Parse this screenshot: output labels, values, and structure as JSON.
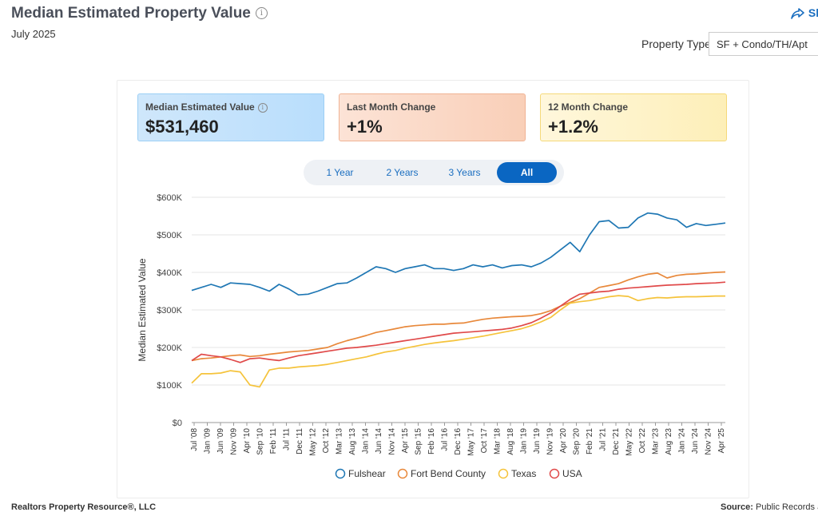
{
  "header": {
    "title": "Median Estimated Property Value",
    "date": "July 2025",
    "share_label": "Sl",
    "property_type_label": "Property Type",
    "property_type_value": "SF + Condo/TH/Apt"
  },
  "cards": [
    {
      "label": "Median Estimated Value",
      "value": "$531,460",
      "info": "i"
    },
    {
      "label": "Last Month Change",
      "value": "+1%"
    },
    {
      "label": "12 Month Change",
      "value": "+1.2%"
    }
  ],
  "tabs": [
    {
      "label": "1 Year",
      "active": false
    },
    {
      "label": "2 Years",
      "active": false
    },
    {
      "label": "3 Years",
      "active": false
    },
    {
      "label": "All",
      "active": true
    }
  ],
  "footer": {
    "left": "Realtors Property Resource®, LLC",
    "source_label": "Source:",
    "source_value": "Public Records an"
  },
  "chart_data": {
    "type": "line",
    "ylabel": "Median Estimated Value",
    "ylim": [
      0,
      600000
    ],
    "yticks": [
      0,
      100000,
      200000,
      300000,
      400000,
      500000,
      600000
    ],
    "ytick_labels": [
      "$0",
      "$100K",
      "$200K",
      "$300K",
      "$400K",
      "$500K",
      "$600K"
    ],
    "xtick_labels": [
      "Jul '08",
      "Jan '09",
      "Jun '09",
      "Nov '09",
      "Apr '10",
      "Sep '10",
      "Feb '11",
      "Jul '11",
      "Dec '11",
      "May '12",
      "Oct '12",
      "Mar '13",
      "Aug '13",
      "Jan '14",
      "Jun '14",
      "Nov '14",
      "Apr '15",
      "Sep '15",
      "Feb '16",
      "Jul '16",
      "Dec '16",
      "May '17",
      "Oct '17",
      "Mar '18",
      "Aug '18",
      "Jan '19",
      "Jun '19",
      "Nov '19",
      "Apr '20",
      "Sep '20",
      "Feb '21",
      "Jul '21",
      "Dec '21",
      "May '22",
      "Oct '22",
      "Mar '23",
      "Aug '23",
      "Jan '24",
      "Jun '24",
      "Nov '24",
      "Apr '25"
    ],
    "legend_position": "bottom",
    "grid": true,
    "series": [
      {
        "name": "Fulshear",
        "color": "#1f77b4",
        "values": [
          352000,
          360000,
          368000,
          360000,
          372000,
          370000,
          368000,
          360000,
          350000,
          368000,
          356000,
          340000,
          342000,
          350000,
          360000,
          370000,
          372000,
          385000,
          400000,
          415000,
          410000,
          400000,
          410000,
          415000,
          420000,
          410000,
          410000,
          405000,
          410000,
          420000,
          415000,
          420000,
          412000,
          418000,
          420000,
          415000,
          425000,
          440000,
          460000,
          480000,
          455000,
          500000,
          535000,
          538000,
          518000,
          520000,
          545000,
          558000,
          555000,
          545000,
          540000,
          520000,
          530000,
          525000,
          528000,
          531460
        ]
      },
      {
        "name": "Fort Bend County",
        "color": "#e8883a",
        "values": [
          165000,
          170000,
          172000,
          175000,
          178000,
          180000,
          176000,
          178000,
          182000,
          185000,
          188000,
          190000,
          192000,
          196000,
          200000,
          210000,
          218000,
          225000,
          232000,
          240000,
          245000,
          250000,
          255000,
          258000,
          260000,
          262000,
          262000,
          264000,
          265000,
          270000,
          275000,
          278000,
          280000,
          282000,
          283000,
          285000,
          290000,
          298000,
          310000,
          320000,
          330000,
          345000,
          360000,
          365000,
          370000,
          380000,
          388000,
          395000,
          398000,
          385000,
          392000,
          395000,
          396000,
          398000,
          400000,
          401000
        ]
      },
      {
        "name": "Texas",
        "color": "#f5c33b",
        "values": [
          105000,
          130000,
          130000,
          132000,
          138000,
          135000,
          100000,
          95000,
          140000,
          145000,
          145000,
          148000,
          150000,
          152000,
          155000,
          160000,
          165000,
          170000,
          175000,
          182000,
          188000,
          192000,
          198000,
          203000,
          208000,
          212000,
          215000,
          218000,
          222000,
          226000,
          230000,
          235000,
          240000,
          245000,
          250000,
          258000,
          268000,
          280000,
          300000,
          318000,
          322000,
          325000,
          330000,
          335000,
          338000,
          336000,
          325000,
          330000,
          333000,
          332000,
          334000,
          335000,
          335000,
          336000,
          337000,
          337000
        ]
      },
      {
        "name": "USA",
        "color": "#e04a4a",
        "values": [
          165000,
          182000,
          178000,
          175000,
          168000,
          160000,
          170000,
          172000,
          168000,
          165000,
          172000,
          178000,
          182000,
          186000,
          190000,
          194000,
          198000,
          200000,
          203000,
          206000,
          210000,
          214000,
          218000,
          222000,
          226000,
          230000,
          234000,
          238000,
          240000,
          242000,
          244000,
          246000,
          248000,
          252000,
          258000,
          266000,
          278000,
          292000,
          310000,
          328000,
          342000,
          345000,
          348000,
          350000,
          355000,
          358000,
          360000,
          362000,
          364000,
          366000,
          367000,
          368000,
          370000,
          371000,
          372000,
          374000
        ]
      }
    ]
  }
}
